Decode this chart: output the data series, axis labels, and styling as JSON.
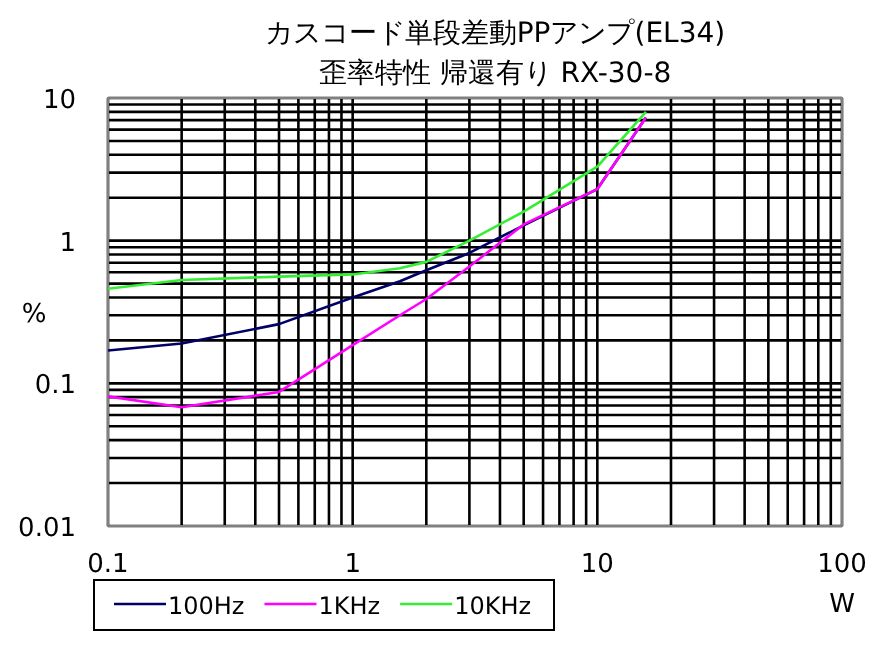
{
  "chart_data": {
    "type": "line",
    "title": "カスコード単段差動PPアンプ(EL34)",
    "subtitle": "歪率特性 帰還有り RX-30-8",
    "xlabel": "W",
    "ylabel": "%",
    "log": "xy",
    "grid": true,
    "legend": "bottom",
    "marker": "none",
    "line_style": "solid",
    "xlim": [
      0.1,
      100
    ],
    "ylim": [
      0.01,
      10
    ],
    "xticks": [
      0.1,
      {
        "value": 0.2,
        "label": null
      },
      {
        "value": 0.3,
        "label": null
      },
      {
        "value": 0.4,
        "label": null
      },
      {
        "value": 0.5,
        "label": null
      },
      {
        "value": 0.6,
        "label": null
      },
      {
        "value": 0.7,
        "label": null
      },
      {
        "value": 0.8,
        "label": null
      },
      {
        "value": 0.9,
        "label": null
      },
      1,
      {
        "value": 2,
        "label": null
      },
      {
        "value": 3,
        "label": null
      },
      {
        "value": 4,
        "label": null
      },
      {
        "value": 5,
        "label": null
      },
      {
        "value": 6,
        "label": null
      },
      {
        "value": 7,
        "label": null
      },
      {
        "value": 8,
        "label": null
      },
      {
        "value": 9,
        "label": null
      },
      10,
      {
        "value": 20,
        "label": null
      },
      {
        "value": 30,
        "label": null
      },
      {
        "value": 40,
        "label": null
      },
      {
        "value": 50,
        "label": null
      },
      {
        "value": 60,
        "label": null
      },
      {
        "value": 70,
        "label": null
      },
      {
        "value": 80,
        "label": null
      },
      {
        "value": 90,
        "label": null
      },
      100
    ],
    "yticks": [
      0.01,
      {
        "value": 0.02,
        "label": null
      },
      {
        "value": 0.03,
        "label": null
      },
      {
        "value": 0.04,
        "label": null
      },
      {
        "value": 0.05,
        "label": null
      },
      {
        "value": 0.06,
        "label": null
      },
      {
        "value": 0.07,
        "label": null
      },
      {
        "value": 0.08,
        "label": null
      },
      {
        "value": 0.09,
        "label": null
      },
      0.1,
      {
        "value": 0.2,
        "label": null
      },
      {
        "value": 0.3,
        "label": null
      },
      {
        "value": 0.4,
        "label": null
      },
      {
        "value": 0.5,
        "label": null
      },
      {
        "value": 0.6,
        "label": null
      },
      {
        "value": 0.7,
        "label": null
      },
      {
        "value": 0.8,
        "label": null
      },
      {
        "value": 0.9,
        "label": null
      },
      1,
      {
        "value": 2,
        "label": null
      },
      {
        "value": 3,
        "label": null
      },
      {
        "value": 4,
        "label": null
      },
      {
        "value": 5,
        "label": null
      },
      {
        "value": 6,
        "label": null
      },
      {
        "value": 7,
        "label": null
      },
      {
        "value": 8,
        "label": null
      },
      {
        "value": 9,
        "label": null
      },
      10
    ],
    "x": [
      0.1,
      0.2,
      0.5,
      1,
      1.56,
      2,
      3,
      5,
      10,
      15.8
    ],
    "series": [
      {
        "name": "100Hz",
        "color": "#000066",
        "values": [
          0.17,
          0.19,
          0.26,
          0.4,
          0.52,
          0.62,
          0.82,
          1.28,
          2.3,
          7.3
        ]
      },
      {
        "name": "1KHz",
        "color": "#ff00ff",
        "values": [
          0.081,
          0.068,
          0.087,
          0.185,
          0.3,
          0.39,
          0.66,
          1.3,
          2.3,
          7.3
        ]
      },
      {
        "name": "10KHz",
        "color": "#33ee33",
        "values": [
          0.46,
          0.53,
          0.56,
          0.58,
          0.64,
          0.71,
          1.0,
          1.6,
          3.3,
          8.0
        ]
      }
    ]
  }
}
